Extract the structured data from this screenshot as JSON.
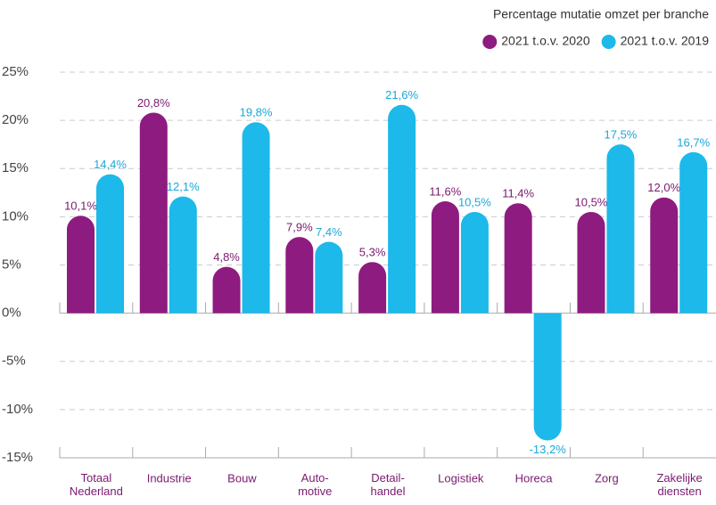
{
  "chart_data": {
    "type": "bar",
    "title": "Percentage mutatie omzet per branche",
    "categories": [
      "Totaal\nNederland",
      "Industrie",
      "Bouw",
      "Auto-\nmotive",
      "Detail-\nhandel",
      "Logistiek",
      "Horeca",
      "Zorg",
      "Zakelijke\ndiensten"
    ],
    "series": [
      {
        "name": "2021 t.o.v. 2020",
        "color": "#8e1b80",
        "values": [
          10.1,
          20.8,
          4.8,
          7.9,
          5.3,
          11.6,
          11.4,
          10.5,
          12.0
        ],
        "value_labels": [
          "10,1%",
          "20,8%",
          "4,8%",
          "7,9%",
          "5,3%",
          "11,6%",
          "11,4%",
          "10,5%",
          "12,0%"
        ]
      },
      {
        "name": "2021 t.o.v. 2019",
        "color": "#1cb9ea",
        "values": [
          14.4,
          12.1,
          19.8,
          7.4,
          21.6,
          10.5,
          -13.2,
          17.5,
          16.7
        ],
        "value_labels": [
          "14,4%",
          "12,1%",
          "19,8%",
          "7,4%",
          "21,6%",
          "10,5%",
          "-13,2%",
          "17,5%",
          "16,7%"
        ]
      }
    ],
    "ylim": [
      -15,
      25
    ],
    "yticks": [
      {
        "value": 25,
        "label": "25%"
      },
      {
        "value": 20,
        "label": "20%"
      },
      {
        "value": 15,
        "label": "15%"
      },
      {
        "value": 10,
        "label": "10%"
      },
      {
        "value": 5,
        "label": "5%"
      },
      {
        "value": 0,
        "label": "0%"
      },
      {
        "value": -5,
        "label": "-5%"
      },
      {
        "value": -10,
        "label": "-10%"
      },
      {
        "value": -15,
        "label": "-15%"
      }
    ],
    "grid": true,
    "legend": "top-right"
  }
}
